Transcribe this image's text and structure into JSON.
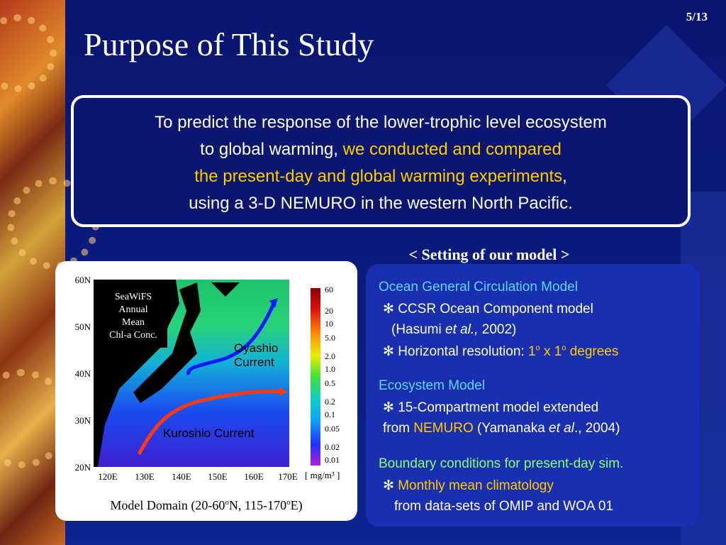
{
  "page_number": "5/13",
  "title": "Purpose of This Study",
  "purpose": {
    "line1": "To predict the response of the lower-trophic level ecosystem",
    "line2a": "to global warming, ",
    "line2b": "we conducted and compared",
    "line3": "the present-day and global warming experiments",
    "line3b": ",",
    "line4": "using a 3-D NEMURO in the western North Pacific."
  },
  "setting_heading": "< Setting of our model >",
  "setting": {
    "ogcm_title": "Ocean General Circulation Model",
    "ogcm_item1": "CCSR Ocean Component model",
    "ogcm_item1b_a": "(Hasumi ",
    "ogcm_item1b_b": "et al.,",
    "ogcm_item1b_c": " 2002)",
    "ogcm_item2a": "Horizontal resolution: ",
    "ogcm_item2b": "1",
    "ogcm_item2c": "o",
    "ogcm_item2d": " x 1",
    "ogcm_item2e": "o",
    "ogcm_item2f": " degrees",
    "eco_title": "Ecosystem Model",
    "eco_item1": "15-Compartment model extended",
    "eco_item1b_a": "from ",
    "eco_item1b_b": "NEMURO",
    "eco_item1b_c": " (Yamanaka ",
    "eco_item1b_d": "et al",
    "eco_item1b_e": "., 2004)",
    "bc_title": "Boundary conditions for present-day sim.",
    "bc_item1": "Monthly mean climatology",
    "bc_item1b": "from data-sets of OMIP and WOA 01",
    "bullet": "✻"
  },
  "map": {
    "lat_labels": [
      "60N",
      "50N",
      "40N",
      "30N",
      "20N"
    ],
    "lon_labels": [
      "120E",
      "130E",
      "140E",
      "150E",
      "160E",
      "170E"
    ],
    "colorbar_labels": [
      "60",
      "20",
      "10",
      "5.0",
      "2.0",
      "1.0",
      "0.5",
      "0.2",
      "0.1",
      "0.05",
      "0.02",
      "0.01"
    ],
    "unit": "[ mg/m³ ]",
    "inset": [
      "SeaWiFS",
      "Annual",
      "Mean",
      "Chl-a Conc."
    ],
    "oyashio": [
      "Oyashio",
      "Current"
    ],
    "kuroshio": "Kuroshio Current",
    "caption_a": "Model Domain (20-60",
    "caption_b": "o",
    "caption_c": "N, 115-170",
    "caption_d": "o",
    "caption_e": "E)"
  }
}
